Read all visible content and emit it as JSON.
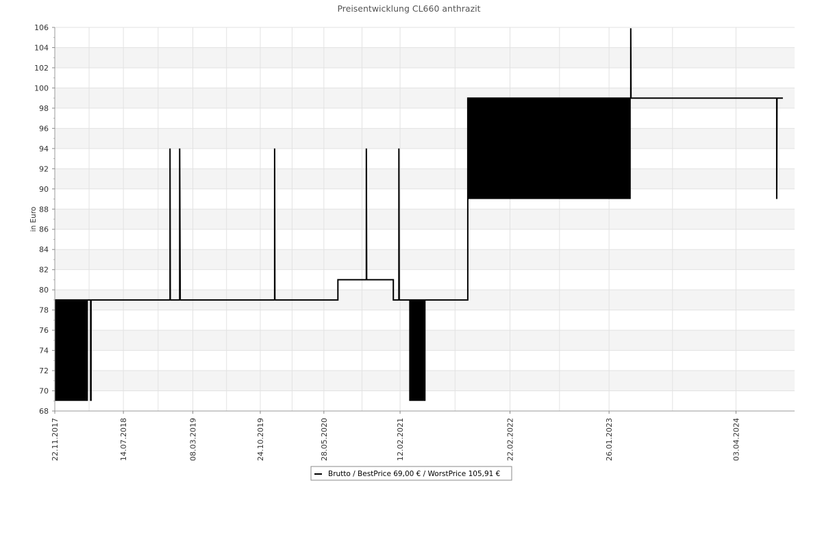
{
  "chart_data": {
    "type": "line",
    "title": "Preisentwicklung CL660 anthrazit",
    "ylabel": "in Euro",
    "xlabel": "",
    "ylim": [
      68,
      106
    ],
    "xlim": [
      "2017-11-22",
      "2024-10-20"
    ],
    "yticks": [
      68,
      70,
      72,
      74,
      76,
      78,
      80,
      82,
      84,
      86,
      88,
      90,
      92,
      94,
      96,
      98,
      100,
      102,
      104,
      106
    ],
    "xticks": [
      "22.11.2017",
      "14.07.2018",
      "08.03.2019",
      "24.10.2019",
      "28.05.2020",
      "12.02.2021",
      "22.02.2022",
      "26.01.2023",
      "03.04.2024"
    ],
    "grid": true,
    "legend_position": "bottom-center",
    "series": [
      {
        "name": "Brutto / BestPrice  69,00 € / WorstPrice  105,91 €",
        "color": "#000000",
        "points": [
          [
            "2017-11-22",
            79
          ],
          [
            "2018-03-15",
            79
          ],
          [
            "2018-03-25",
            79
          ],
          [
            "2018-06-15",
            79
          ],
          [
            "2018-12-20",
            79
          ],
          [
            "2018-12-20",
            94
          ],
          [
            "2018-12-21",
            79
          ],
          [
            "2019-01-22",
            79
          ],
          [
            "2019-01-22",
            94
          ],
          [
            "2019-01-24",
            79
          ],
          [
            "2019-12-12",
            79
          ],
          [
            "2019-12-12",
            94
          ],
          [
            "2019-12-13",
            79
          ],
          [
            "2020-07-15",
            79
          ],
          [
            "2020-07-15",
            81
          ],
          [
            "2020-10-20",
            81
          ],
          [
            "2020-10-20",
            94
          ],
          [
            "2020-10-21",
            81
          ],
          [
            "2021-01-20",
            81
          ],
          [
            "2021-01-20",
            79
          ],
          [
            "2021-02-08",
            79
          ],
          [
            "2021-02-08",
            94
          ],
          [
            "2021-02-09",
            79
          ],
          [
            "2021-07-10",
            79
          ],
          [
            "2021-10-01",
            79
          ],
          [
            "2021-10-01",
            99
          ],
          [
            "2023-04-10",
            99
          ],
          [
            "2023-04-10",
            105.91
          ],
          [
            "2023-04-11",
            99
          ],
          [
            "2024-08-20",
            99
          ],
          [
            "2024-08-20",
            89
          ],
          [
            "2024-08-21",
            99
          ],
          [
            "2024-09-10",
            99
          ]
        ],
        "fluctuation_bands": [
          {
            "from": "2017-11-22",
            "to": "2018-03-15",
            "low": 69,
            "high": 79
          },
          {
            "from": "2018-03-22",
            "to": "2018-03-28",
            "low": 69,
            "high": 79
          },
          {
            "from": "2021-03-15",
            "to": "2021-05-10",
            "low": 69,
            "high": 79
          },
          {
            "from": "2021-10-01",
            "to": "2023-04-10",
            "low": 89,
            "high": 99
          }
        ]
      }
    ]
  }
}
